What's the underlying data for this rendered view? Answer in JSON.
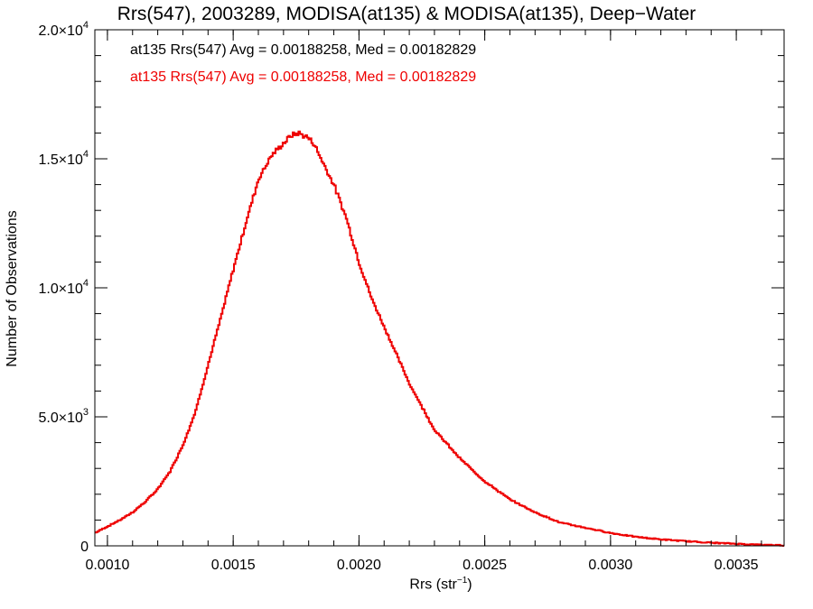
{
  "chart_data": {
    "type": "line",
    "title": "Rrs(547), 2003289, MODISA(at135) & MODISA(at135), Deep−Water",
    "xlabel": {
      "main": "Rrs (str",
      "sup": "−1",
      "tail": ")"
    },
    "ylabel": "Number of Observations",
    "annotations": [
      {
        "text": "at135 Rrs(547) Avg = 0.00188258, Med = 0.00182829",
        "color": "#000000"
      },
      {
        "text": "at135 Rrs(547) Avg = 0.00188258, Med = 0.00182829",
        "color": "#ee0000"
      }
    ],
    "xlim": [
      0.00095,
      0.00369
    ],
    "ylim": [
      0,
      20000
    ],
    "x_ticks": [
      {
        "value": 0.001,
        "label": "0.0010"
      },
      {
        "value": 0.0015,
        "label": "0.0015"
      },
      {
        "value": 0.002,
        "label": "0.0020"
      },
      {
        "value": 0.0025,
        "label": "0.0025"
      },
      {
        "value": 0.003,
        "label": "0.0030"
      },
      {
        "value": 0.0035,
        "label": "0.0035"
      }
    ],
    "y_ticks": [
      {
        "value": 0,
        "mant": "0",
        "exp": ""
      },
      {
        "value": 5000,
        "mant": "5.0×10",
        "exp": "3"
      },
      {
        "value": 10000,
        "mant": "1.0×10",
        "exp": "4"
      },
      {
        "value": 15000,
        "mant": "1.5×10",
        "exp": "4"
      },
      {
        "value": 20000,
        "mant": "2.0×10",
        "exp": "4"
      }
    ],
    "grid": false,
    "series": [
      {
        "color": "#ee0000",
        "step": true,
        "x": [
          0.00095,
          0.001,
          0.00105,
          0.0011,
          0.00115,
          0.0012,
          0.00125,
          0.0013,
          0.00135,
          0.0014,
          0.00145,
          0.0015,
          0.00155,
          0.0016,
          0.00165,
          0.0017,
          0.00173,
          0.00176,
          0.00178,
          0.0018,
          0.00182,
          0.00185,
          0.0019,
          0.00195,
          0.002,
          0.00205,
          0.0021,
          0.00215,
          0.0022,
          0.00225,
          0.0023,
          0.0024,
          0.0025,
          0.0026,
          0.0027,
          0.0028,
          0.0029,
          0.003,
          0.0031,
          0.0032,
          0.0033,
          0.0034,
          0.0035,
          0.0036,
          0.00369
        ],
        "y": [
          500,
          750,
          1000,
          1300,
          1700,
          2200,
          2900,
          3900,
          5200,
          7000,
          8800,
          10700,
          12500,
          14200,
          15100,
          15600,
          15900,
          16000,
          15900,
          15800,
          15600,
          15000,
          14000,
          12700,
          11000,
          9600,
          8500,
          7400,
          6300,
          5400,
          4500,
          3400,
          2500,
          1800,
          1300,
          900,
          700,
          500,
          350,
          250,
          180,
          120,
          80,
          40,
          20
        ]
      }
    ]
  }
}
